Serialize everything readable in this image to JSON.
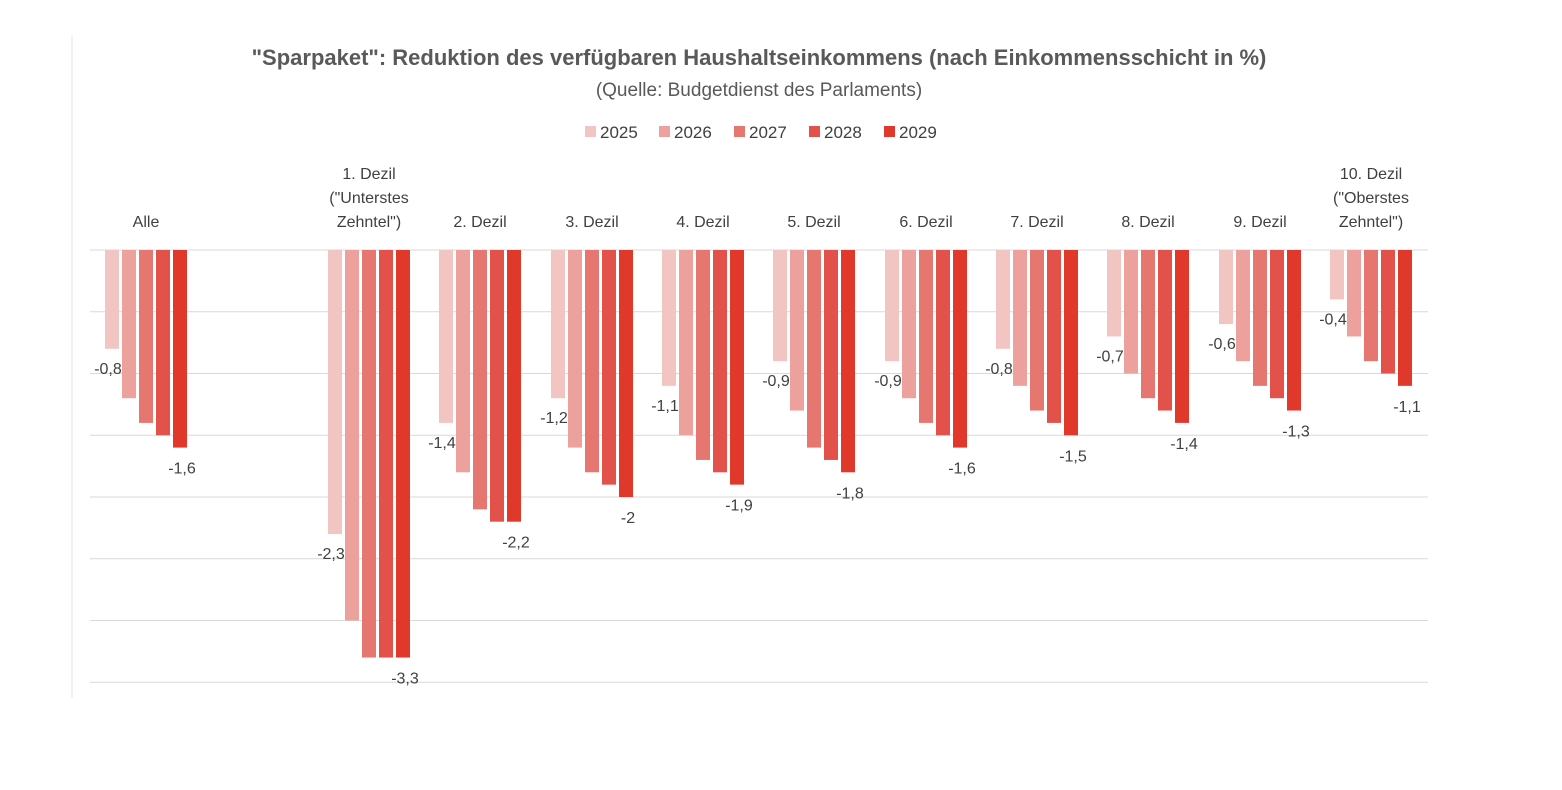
{
  "chart_data": {
    "type": "bar",
    "title": "\"Sparpaket\": Reduktion des verfügbaren Haushaltseinkommens (nach Einkommensschicht in %)",
    "subtitle": "(Quelle: Budgetdienst des Parlaments)",
    "legend_position": "top",
    "grid": true,
    "ylim": [
      -3.5,
      0
    ],
    "categories": [
      [
        "Alle"
      ],
      [
        "1. Dezil",
        "(\"Unterstes",
        "Zehntel\")"
      ],
      [
        "2. Dezil"
      ],
      [
        "3. Dezil"
      ],
      [
        "4. Dezil"
      ],
      [
        "5. Dezil"
      ],
      [
        "6. Dezil"
      ],
      [
        "7. Dezil"
      ],
      [
        "8. Dezil"
      ],
      [
        "9. Dezil"
      ],
      [
        "10. Dezil",
        "(\"Oberstes",
        "Zehntel\")"
      ]
    ],
    "series": [
      {
        "name": "2025",
        "color": "#f2c4c2",
        "values": [
          -0.8,
          -2.3,
          -1.4,
          -1.2,
          -1.1,
          -0.9,
          -0.9,
          -0.8,
          -0.7,
          -0.6,
          -0.4
        ]
      },
      {
        "name": "2026",
        "color": "#eca19c",
        "values": [
          -1.2,
          -3.0,
          -1.8,
          -1.6,
          -1.5,
          -1.3,
          -1.2,
          -1.1,
          -1.0,
          -0.9,
          -0.7
        ]
      },
      {
        "name": "2027",
        "color": "#e57670",
        "values": [
          -1.4,
          -3.3,
          -2.1,
          -1.8,
          -1.7,
          -1.6,
          -1.4,
          -1.3,
          -1.2,
          -1.1,
          -0.9
        ]
      },
      {
        "name": "2028",
        "color": "#e2524a",
        "values": [
          -1.5,
          -3.3,
          -2.2,
          -1.9,
          -1.8,
          -1.7,
          -1.5,
          -1.4,
          -1.3,
          -1.2,
          -1.0
        ]
      },
      {
        "name": "2029",
        "color": "#e0392b",
        "values": [
          -1.6,
          -3.3,
          -2.2,
          -2.0,
          -1.9,
          -1.8,
          -1.6,
          -1.5,
          -1.4,
          -1.3,
          -1.1
        ]
      }
    ],
    "data_labels": {
      "first_series": [
        "-0,8",
        "-2,3",
        "-1,4",
        "-1,2",
        "-1,1",
        "-0,9",
        "-0,9",
        "-0,8",
        "-0,7",
        "-0,6",
        "-0,4"
      ],
      "last_series": [
        "-1,6",
        "-3,3",
        "-2,2",
        "-2",
        "-1,9",
        "-1,8",
        "-1,6",
        "-1,5",
        "-1,4",
        "-1,3",
        "-1,1"
      ]
    }
  }
}
